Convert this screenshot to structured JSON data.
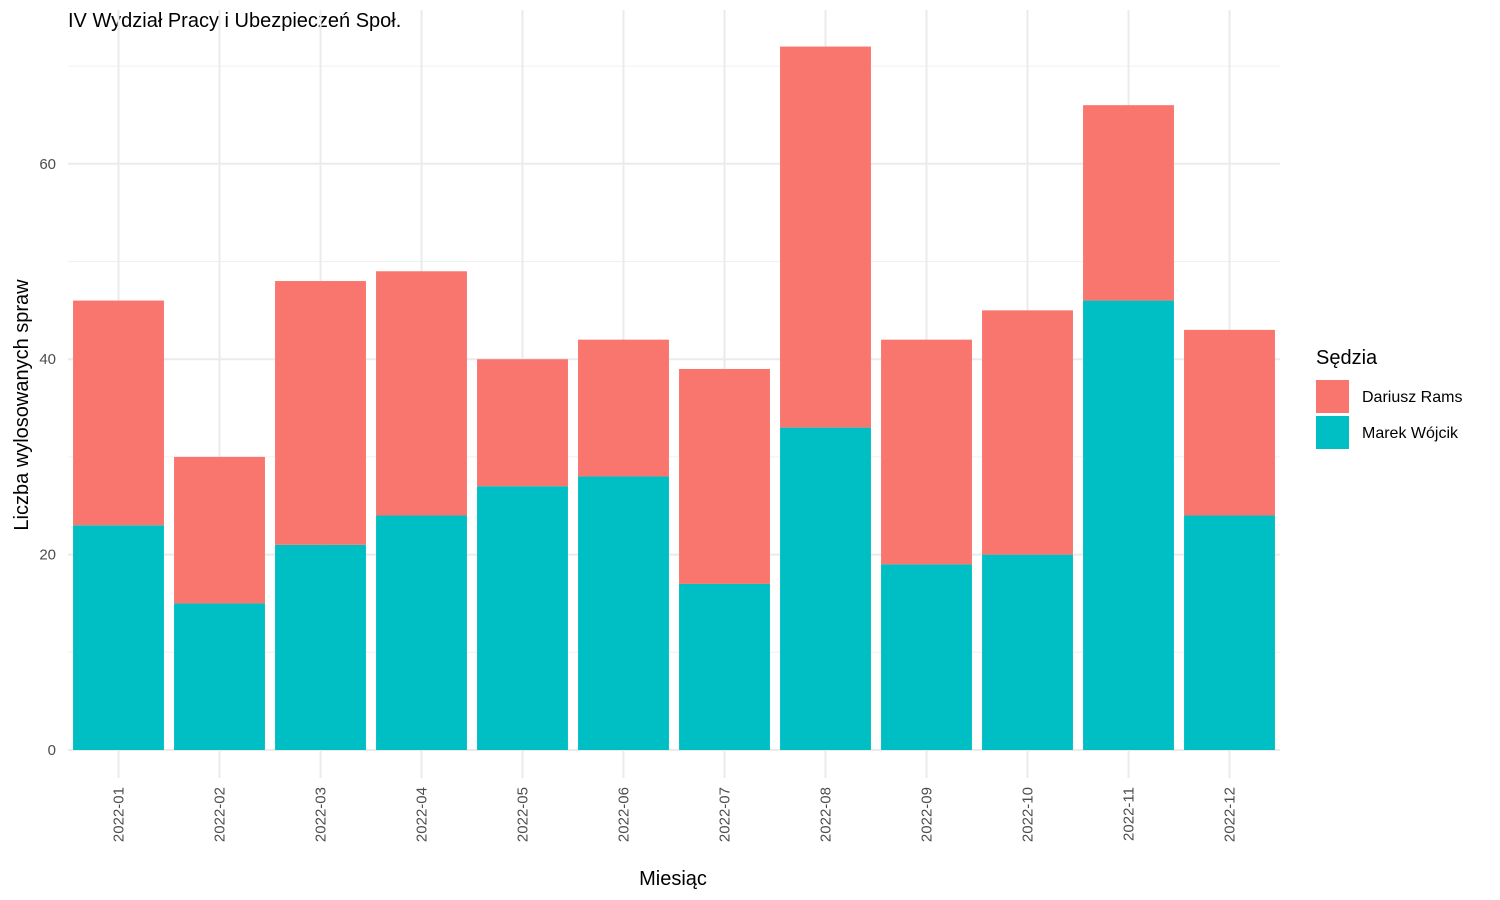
{
  "chart_data": {
    "type": "bar",
    "stacked": true,
    "title": "IV Wydział Pracy i Ubezpieczeń Społ.",
    "xlabel": "Miesiąc",
    "ylabel": "Liczba wylosowanych spraw",
    "ylim": [
      0,
      72
    ],
    "yticks": [
      0,
      20,
      40,
      60
    ],
    "grid": true,
    "legend": {
      "title": "Sędzia",
      "position": "right"
    },
    "categories": [
      "2022-01",
      "2022-02",
      "2022-03",
      "2022-04",
      "2022-05",
      "2022-06",
      "2022-07",
      "2022-08",
      "2022-09",
      "2022-10",
      "2022-11",
      "2022-12"
    ],
    "series": [
      {
        "name": "Marek Wójcik",
        "color": "#00BFC4",
        "values": [
          23,
          15,
          21,
          24,
          27,
          28,
          17,
          33,
          19,
          20,
          46,
          24
        ]
      },
      {
        "name": "Dariusz Rams",
        "color": "#F8766D",
        "values": [
          23,
          15,
          27,
          25,
          13,
          14,
          22,
          39,
          23,
          25,
          20,
          19
        ]
      }
    ],
    "legend_order": [
      "Dariusz Rams",
      "Marek Wójcik"
    ]
  }
}
